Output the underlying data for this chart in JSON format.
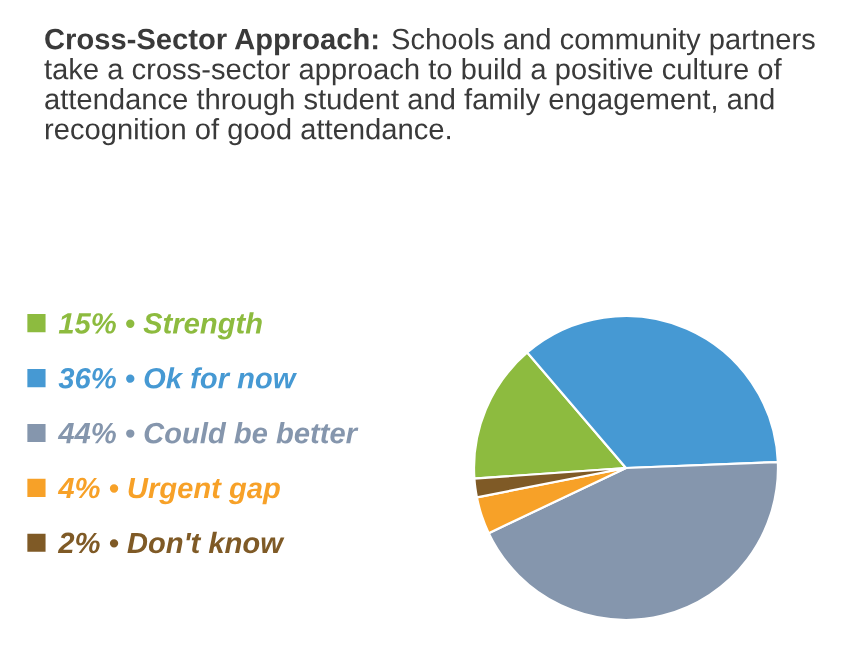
{
  "chart_data": {
    "type": "pie",
    "title": "Cross-Sector Approach:",
    "subtitle": "Schools and community partners take a cross-sector approach to build a positive culture of attendance through student and family engagement, and recognition of good attendance.",
    "categories": [
      "15% • Strength",
      "36% • Ok for now",
      "44% • Could be better",
      "4% • Urgent gap",
      "2% • Don't know"
    ],
    "values": [
      15,
      36,
      44,
      4,
      2
    ],
    "colors": [
      "#8dbb3f",
      "#4699d3",
      "#8596ad",
      "#f7a128",
      "#7f5a26"
    ],
    "legend": "left"
  }
}
